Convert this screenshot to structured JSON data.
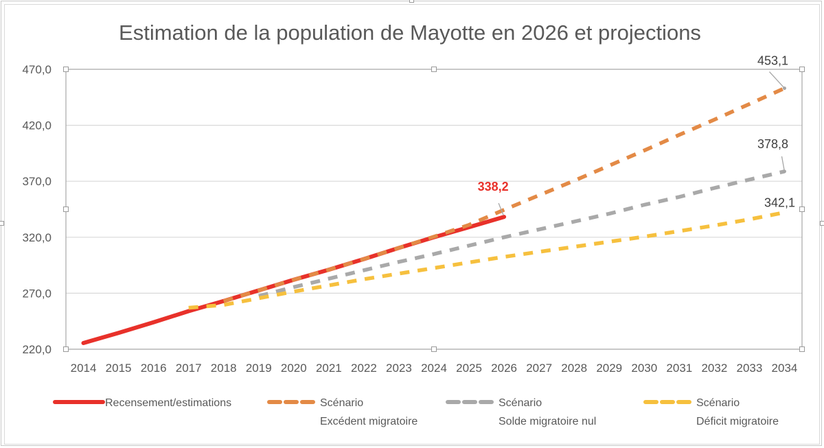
{
  "chart_data": {
    "type": "line",
    "title": "Estimation de la population de Mayotte en 2026 et projections",
    "xlabel": "",
    "ylabel": "",
    "ylim": [
      220,
      470
    ],
    "yticks": [
      220,
      270,
      320,
      370,
      420,
      470
    ],
    "ytick_labels": [
      "220,0",
      "270,0",
      "320,0",
      "370,0",
      "420,0",
      "470,0"
    ],
    "grid": "horizontal",
    "legend_position": "bottom",
    "categories": [
      "2014",
      "2015",
      "2016",
      "2017",
      "2018",
      "2019",
      "2020",
      "2021",
      "2022",
      "2023",
      "2024",
      "2025",
      "2026",
      "2027",
      "2028",
      "2029",
      "2030",
      "2031",
      "2032",
      "2033",
      "2034"
    ],
    "series": [
      {
        "name": "Recensement/estimations",
        "style": "solid",
        "color": "#e8312a",
        "values": [
          225.5,
          234.5,
          244.0,
          254.0,
          263.0,
          272.5,
          282.0,
          291.0,
          300.5,
          310.5,
          320.0,
          329.0,
          338.2,
          null,
          null,
          null,
          null,
          null,
          null,
          null,
          null
        ]
      },
      {
        "name": "Scénario Excédent migratoire",
        "legend_lines": [
          "Scénario",
          "Excédent migratoire"
        ],
        "style": "dashed",
        "color": "#e38a46",
        "values": [
          null,
          null,
          null,
          null,
          263.0,
          272.5,
          282.0,
          291.0,
          300.5,
          310.5,
          320.5,
          331.0,
          344.5,
          357.5,
          370.5,
          384.0,
          397.5,
          411.5,
          425.0,
          439.0,
          453.1
        ]
      },
      {
        "name": "Scénario Solde migratoire nul",
        "legend_lines": [
          "Scénario",
          "Solde migratoire nul"
        ],
        "style": "dashed",
        "color": "#a9a9a9",
        "values": [
          null,
          null,
          null,
          null,
          null,
          267.5,
          275.5,
          283.0,
          290.5,
          298.0,
          305.0,
          312.5,
          320.0,
          327.0,
          334.0,
          341.0,
          349.0,
          356.0,
          364.0,
          371.5,
          378.8
        ]
      },
      {
        "name": "Scénario Déficit migratoire",
        "legend_lines": [
          "Scénario",
          "Déficit migratoire"
        ],
        "style": "dashed",
        "color": "#f6c03e",
        "values": [
          null,
          null,
          null,
          257.0,
          259.5,
          265.5,
          271.5,
          277.0,
          282.5,
          287.5,
          292.5,
          297.5,
          302.5,
          307.0,
          311.5,
          316.0,
          320.5,
          325.5,
          330.5,
          336.0,
          342.1
        ]
      }
    ],
    "data_labels": [
      {
        "series": 0,
        "category": "2026",
        "text": "338,2"
      },
      {
        "series": 1,
        "category": "2034",
        "text": "453,1"
      },
      {
        "series": 2,
        "category": "2034",
        "text": "378,8"
      },
      {
        "series": 3,
        "category": "2034",
        "text": "342,1"
      }
    ]
  }
}
